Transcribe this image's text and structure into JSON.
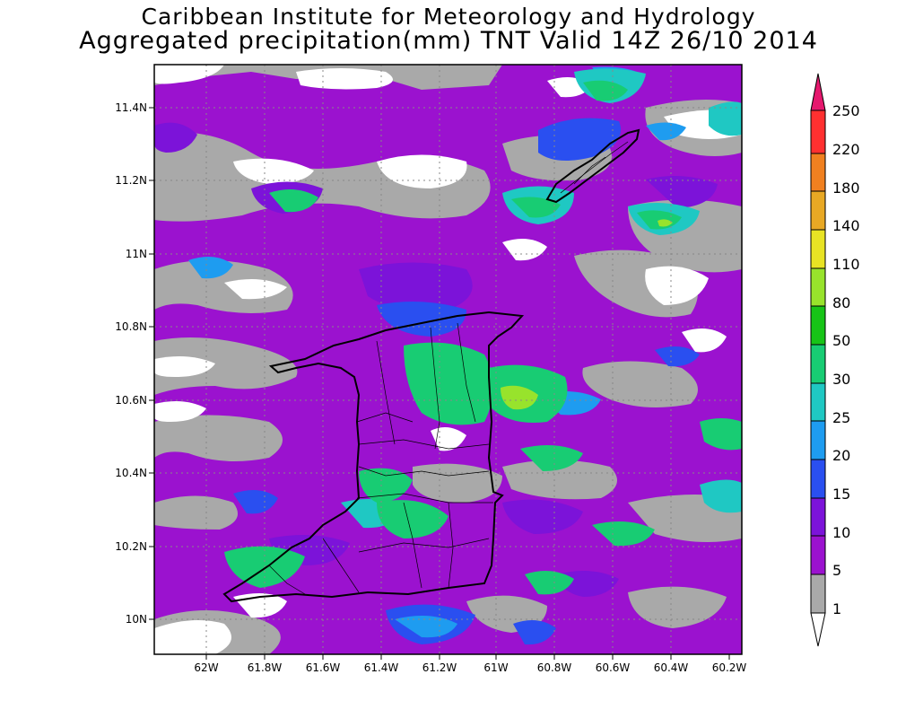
{
  "header": {
    "title": "Caribbean Institute for Meteorology and Hydrology",
    "subtitle": "Aggregated precipitation(mm) TNT Valid 14Z 26/10 2014"
  },
  "map": {
    "lon_range": [
      -62.2,
      -60.2
    ],
    "lat_range": [
      9.9,
      11.5
    ],
    "grid": true,
    "x_ticks": [
      {
        "label": "62W"
      },
      {
        "label": "61.8W"
      },
      {
        "label": "61.6W"
      },
      {
        "label": "61.4W"
      },
      {
        "label": "61.2W"
      },
      {
        "label": "61W"
      },
      {
        "label": "60.8W"
      },
      {
        "label": "60.6W"
      },
      {
        "label": "60.4W"
      },
      {
        "label": "60.2W"
      }
    ],
    "y_ticks": [
      {
        "label": "11.4N"
      },
      {
        "label": "11.2N"
      },
      {
        "label": "11N"
      },
      {
        "label": "10.8N"
      },
      {
        "label": "10.6N"
      },
      {
        "label": "10.4N"
      },
      {
        "label": "10.2N"
      },
      {
        "label": "10N"
      }
    ],
    "islands": [
      "Trinidad",
      "Tobago"
    ]
  },
  "colorbar": {
    "levels": [
      "1",
      "5",
      "10",
      "15",
      "20",
      "25",
      "30",
      "50",
      "80",
      "110",
      "140",
      "180",
      "220",
      "250"
    ],
    "colors": [
      "#ffffff",
      "#a9a9a9",
      "#9b12cf",
      "#7c13d9",
      "#2a4ff0",
      "#1e9cf0",
      "#1fc8c3",
      "#18cc73",
      "#17c417",
      "#98e32c",
      "#e8e324",
      "#e8a824",
      "#f08020",
      "#ff3030",
      "#e6186e"
    ]
  },
  "colors": {
    "precip_5_10": "#a9a9a9",
    "precip_10": "#9b12cf",
    "precip_15": "#7c13d9",
    "precip_20": "#2a4ff0",
    "precip_25": "#1e9cf0",
    "precip_30": "#1fc8c3",
    "precip_50": "#18cc73",
    "precip_80": "#98e32c"
  }
}
